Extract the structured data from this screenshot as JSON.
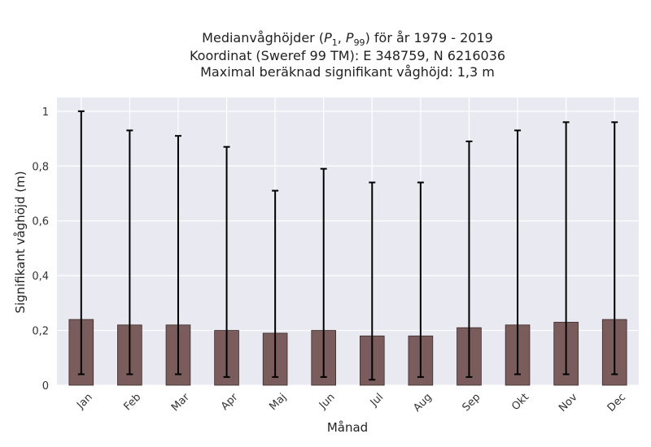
{
  "chart_data": {
    "type": "bar",
    "title_lines": [
      {
        "pre": "Medianvåghöjder (",
        "p1": "P",
        "s1": "1",
        "sep": ", ",
        "p2": "P",
        "s2": "99",
        "post": ") för år 1979 - 2019"
      },
      "Koordinat (Sweref 99 TM): E 348759, N 6216036",
      "Maximal beräknad signifikant våghöjd: 1,3 m"
    ],
    "xlabel": "Månad",
    "ylabel": "Signifikant våghöjd (m)",
    "categories": [
      "Jan",
      "Feb",
      "Mar",
      "Apr",
      "Maj",
      "Jun",
      "Jul",
      "Aug",
      "Sep",
      "Okt",
      "Nov",
      "Dec"
    ],
    "values": [
      0.24,
      0.22,
      0.22,
      0.2,
      0.19,
      0.2,
      0.18,
      0.18,
      0.21,
      0.22,
      0.23,
      0.24
    ],
    "error_low": [
      0.04,
      0.04,
      0.04,
      0.03,
      0.03,
      0.03,
      0.02,
      0.03,
      0.03,
      0.04,
      0.04,
      0.04
    ],
    "error_high": [
      1.0,
      0.93,
      0.91,
      0.87,
      0.71,
      0.79,
      0.74,
      0.74,
      0.89,
      0.93,
      0.96,
      0.96
    ],
    "ylim": [
      0,
      1.05
    ],
    "yticks": [
      0,
      0.2,
      0.4,
      0.6,
      0.8,
      1
    ],
    "ytick_labels": [
      "0",
      "0,2",
      "0,4",
      "0,6",
      "0,8",
      "1"
    ],
    "grid": true,
    "colors": {
      "bar": "#7a5c5c",
      "bar_edge": "#3a2a2a",
      "background": "#e9e9f1",
      "grid": "#ffffff",
      "error": "#000000"
    }
  }
}
